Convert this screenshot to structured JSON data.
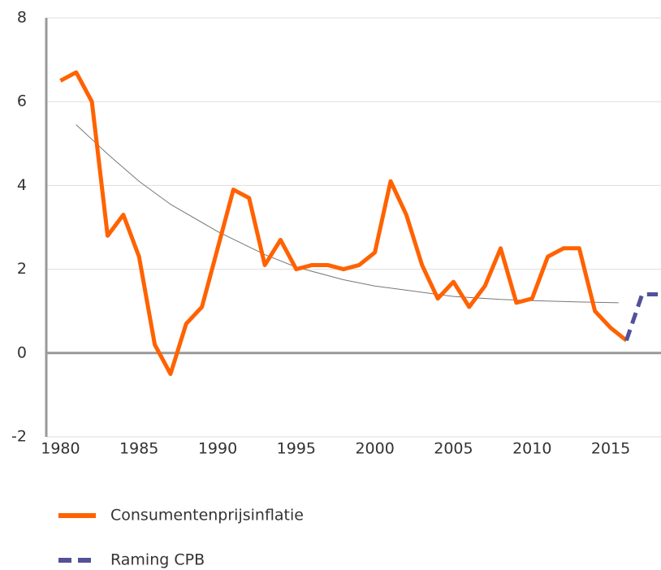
{
  "chart_data": {
    "type": "line",
    "xlim": [
      1979.1,
      2018.2
    ],
    "xticks": [
      1980,
      1985,
      1990,
      1995,
      2000,
      2005,
      2010,
      2015
    ],
    "ylim": [
      -2,
      8
    ],
    "yticks": [
      -2,
      0,
      2,
      4,
      6,
      8
    ],
    "grid": true,
    "series": [
      {
        "name": "Consumentenprijsinflatie",
        "color": "#ff6200",
        "dash": false,
        "width": 5,
        "x": [
          1980,
          1981,
          1982,
          1983,
          1984,
          1985,
          1986,
          1987,
          1988,
          1989,
          1990,
          1991,
          1992,
          1993,
          1994,
          1995,
          1996,
          1997,
          1998,
          1999,
          2000,
          2001,
          2002,
          2003,
          2004,
          2005,
          2006,
          2007,
          2008,
          2009,
          2010,
          2011,
          2012,
          2013,
          2014,
          2015,
          2016
        ],
        "values": [
          6.5,
          6.7,
          6.0,
          2.8,
          3.3,
          2.3,
          0.2,
          -0.5,
          0.7,
          1.1,
          2.5,
          3.9,
          3.7,
          2.1,
          2.7,
          2.0,
          2.1,
          2.1,
          2.0,
          2.1,
          2.4,
          4.1,
          3.3,
          2.1,
          1.3,
          1.7,
          1.1,
          1.6,
          2.5,
          1.2,
          1.3,
          2.3,
          2.5,
          2.5,
          1.0,
          0.6,
          0.3
        ]
      },
      {
        "name": "Raming CPB",
        "color": "#525199",
        "dash": true,
        "width": 5,
        "x": [
          2016,
          2017,
          2018
        ],
        "values": [
          0.3,
          1.4,
          1.4
        ]
      },
      {
        "color": "#777777",
        "dash": false,
        "width": 1,
        "x": [
          1981,
          1983,
          1985,
          1987,
          1990,
          1993,
          1995,
          1998,
          2000,
          2003,
          2005,
          2008,
          2010,
          2013,
          2015.5
        ],
        "values": [
          5.45,
          4.75,
          4.1,
          3.55,
          2.9,
          2.35,
          2.05,
          1.75,
          1.6,
          1.45,
          1.35,
          1.28,
          1.25,
          1.22,
          1.2
        ]
      }
    ]
  }
}
